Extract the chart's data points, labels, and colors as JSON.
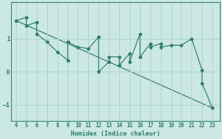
{
  "xlabel": "Humidex (Indice chaleur)",
  "zigzag_x": [
    4,
    5,
    5,
    6,
    6,
    7,
    8,
    9,
    9,
    10,
    11,
    12,
    12,
    13,
    13,
    14,
    14,
    15,
    15,
    16,
    16,
    17,
    17,
    18,
    18,
    19,
    20,
    21,
    22,
    22,
    23
  ],
  "zigzag_y": [
    1.55,
    1.65,
    1.4,
    1.5,
    1.15,
    0.9,
    0.6,
    0.35,
    0.9,
    0.75,
    0.7,
    1.05,
    0.0,
    0.3,
    0.45,
    0.45,
    0.2,
    0.55,
    0.3,
    1.15,
    0.45,
    0.85,
    0.75,
    0.85,
    0.75,
    0.8,
    0.8,
    1.0,
    0.05,
    -0.35,
    -1.1
  ],
  "trend_x": [
    4,
    23
  ],
  "trend_y": [
    1.55,
    -1.1
  ],
  "line_color": "#2d7d6c",
  "bg_color": "#cce8e4",
  "grid_color": "#aad4cc",
  "xticks": [
    4,
    5,
    6,
    7,
    8,
    9,
    10,
    11,
    12,
    13,
    14,
    15,
    16,
    17,
    18,
    19,
    20,
    21,
    22,
    23
  ],
  "yticks": [
    -1,
    0,
    1
  ],
  "ylim": [
    -1.5,
    2.1
  ],
  "xlim": [
    3.5,
    23.7
  ]
}
